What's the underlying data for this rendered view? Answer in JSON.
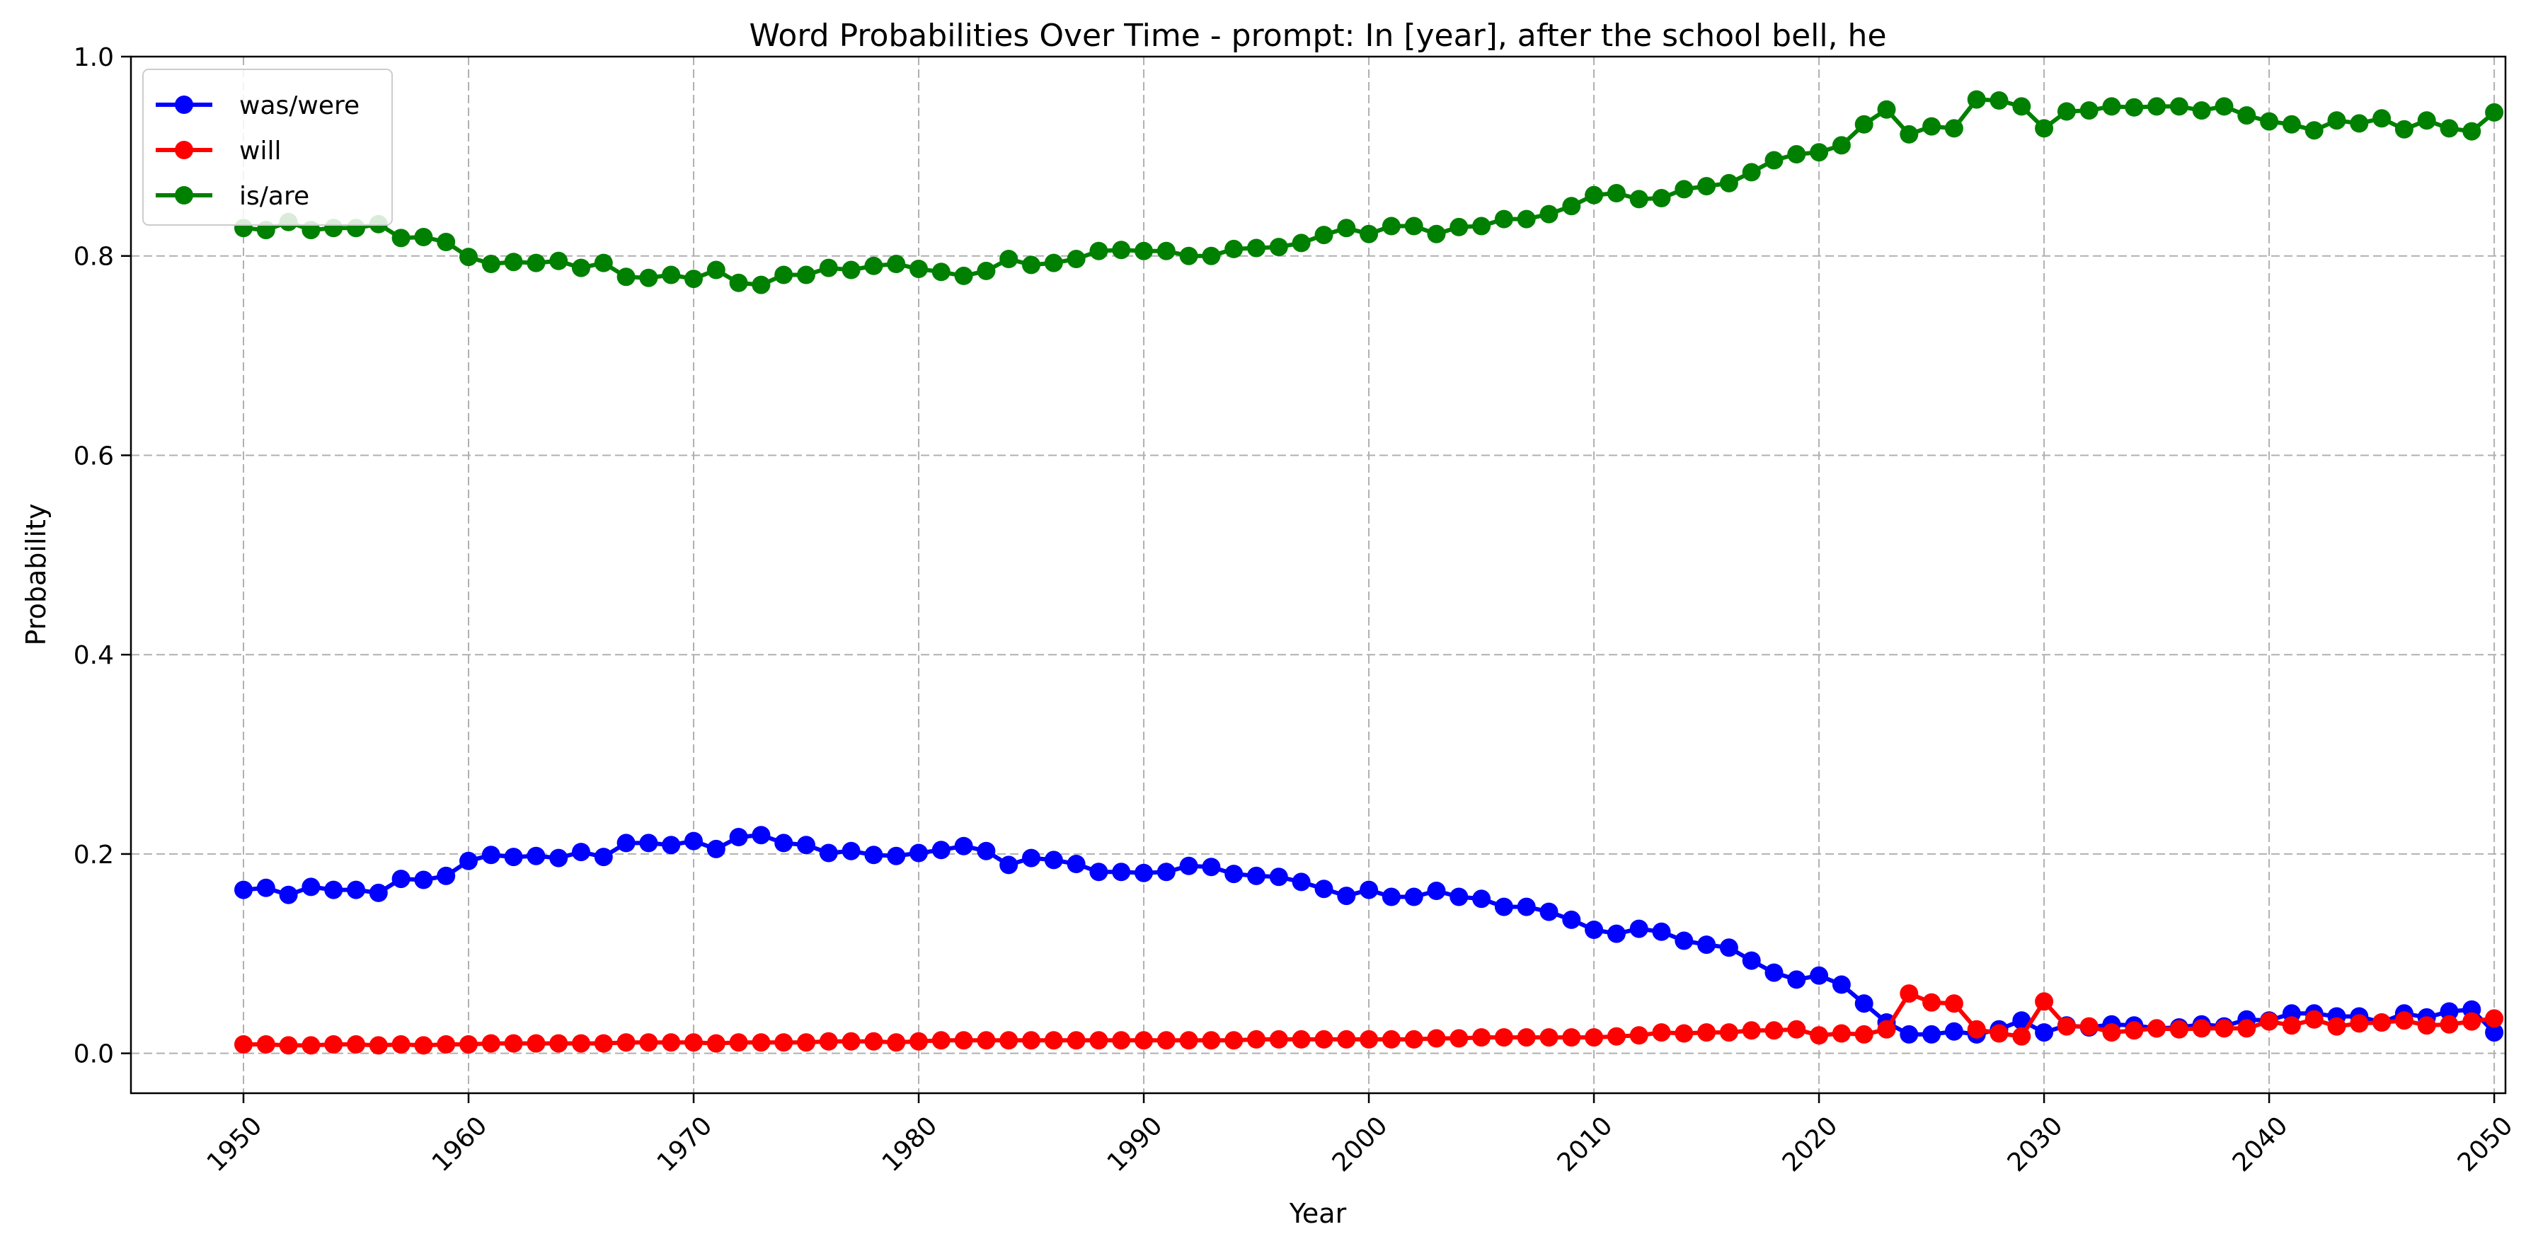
{
  "chart_data": {
    "type": "line",
    "title": "Word Probabilities Over Time - prompt: In [year], after the school bell, he",
    "xlabel": "Year",
    "ylabel": "Probability",
    "xlim": [
      1945,
      2050.5
    ],
    "ylim": [
      -0.04,
      1.0
    ],
    "xticks": [
      1950,
      1960,
      1970,
      1980,
      1990,
      2000,
      2010,
      2020,
      2030,
      2040,
      2050
    ],
    "yticks": [
      0.0,
      0.2,
      0.4,
      0.6,
      0.8,
      1.0
    ],
    "ytick_labels": [
      "0.0",
      "0.2",
      "0.4",
      "0.6",
      "0.8",
      "1.0"
    ],
    "grid": true,
    "legend_position": "top-left",
    "x_start": 1950,
    "x_end": 2050,
    "series": [
      {
        "name": "was/were",
        "color": "#0000ff",
        "values": [
          0.164,
          0.166,
          0.159,
          0.167,
          0.164,
          0.164,
          0.161,
          0.175,
          0.174,
          0.178,
          0.193,
          0.199,
          0.197,
          0.198,
          0.196,
          0.202,
          0.197,
          0.211,
          0.211,
          0.209,
          0.213,
          0.205,
          0.217,
          0.219,
          0.211,
          0.209,
          0.201,
          0.203,
          0.199,
          0.198,
          0.201,
          0.204,
          0.208,
          0.203,
          0.189,
          0.196,
          0.194,
          0.19,
          0.182,
          0.182,
          0.181,
          0.182,
          0.188,
          0.187,
          0.18,
          0.178,
          0.177,
          0.172,
          0.165,
          0.158,
          0.164,
          0.157,
          0.157,
          0.163,
          0.157,
          0.155,
          0.147,
          0.147,
          0.142,
          0.134,
          0.124,
          0.12,
          0.125,
          0.122,
          0.113,
          0.109,
          0.106,
          0.093,
          0.081,
          0.074,
          0.078,
          0.069,
          0.05,
          0.031,
          0.019,
          0.019,
          0.022,
          0.019,
          0.024,
          0.033,
          0.021,
          0.028,
          0.026,
          0.029,
          0.028,
          0.025,
          0.026,
          0.029,
          0.027,
          0.034,
          0.033,
          0.04,
          0.04,
          0.037,
          0.037,
          0.031,
          0.04,
          0.036,
          0.042,
          0.044,
          0.021
        ]
      },
      {
        "name": "will",
        "color": "#ff0000",
        "values": [
          0.009,
          0.009,
          0.008,
          0.008,
          0.009,
          0.009,
          0.008,
          0.009,
          0.008,
          0.009,
          0.009,
          0.01,
          0.01,
          0.01,
          0.01,
          0.01,
          0.01,
          0.011,
          0.011,
          0.011,
          0.011,
          0.01,
          0.011,
          0.011,
          0.011,
          0.011,
          0.012,
          0.012,
          0.012,
          0.011,
          0.012,
          0.013,
          0.013,
          0.013,
          0.013,
          0.013,
          0.013,
          0.013,
          0.013,
          0.013,
          0.013,
          0.013,
          0.013,
          0.013,
          0.013,
          0.014,
          0.014,
          0.014,
          0.014,
          0.014,
          0.014,
          0.014,
          0.014,
          0.015,
          0.015,
          0.016,
          0.016,
          0.016,
          0.016,
          0.016,
          0.016,
          0.017,
          0.018,
          0.021,
          0.02,
          0.021,
          0.021,
          0.023,
          0.023,
          0.024,
          0.018,
          0.02,
          0.019,
          0.024,
          0.06,
          0.051,
          0.05,
          0.024,
          0.02,
          0.017,
          0.052,
          0.027,
          0.027,
          0.021,
          0.023,
          0.025,
          0.024,
          0.025,
          0.025,
          0.025,
          0.032,
          0.028,
          0.034,
          0.027,
          0.03,
          0.031,
          0.033,
          0.028,
          0.029,
          0.032,
          0.035
        ]
      },
      {
        "name": "is/are",
        "color": "#008000",
        "values": [
          0.828,
          0.826,
          0.834,
          0.826,
          0.828,
          0.828,
          0.832,
          0.818,
          0.819,
          0.814,
          0.799,
          0.792,
          0.794,
          0.793,
          0.795,
          0.788,
          0.793,
          0.779,
          0.778,
          0.781,
          0.777,
          0.786,
          0.773,
          0.771,
          0.781,
          0.781,
          0.788,
          0.786,
          0.79,
          0.792,
          0.787,
          0.784,
          0.78,
          0.785,
          0.797,
          0.791,
          0.793,
          0.797,
          0.805,
          0.806,
          0.805,
          0.805,
          0.8,
          0.8,
          0.807,
          0.808,
          0.809,
          0.813,
          0.821,
          0.828,
          0.822,
          0.83,
          0.83,
          0.822,
          0.829,
          0.83,
          0.837,
          0.837,
          0.842,
          0.85,
          0.861,
          0.863,
          0.857,
          0.858,
          0.867,
          0.87,
          0.873,
          0.884,
          0.896,
          0.902,
          0.904,
          0.911,
          0.932,
          0.947,
          0.922,
          0.93,
          0.928,
          0.957,
          0.956,
          0.95,
          0.928,
          0.945,
          0.946,
          0.95,
          0.949,
          0.95,
          0.95,
          0.946,
          0.95,
          0.941,
          0.935,
          0.932,
          0.926,
          0.936,
          0.933,
          0.938,
          0.927,
          0.936,
          0.928,
          0.925,
          0.944
        ]
      }
    ]
  }
}
